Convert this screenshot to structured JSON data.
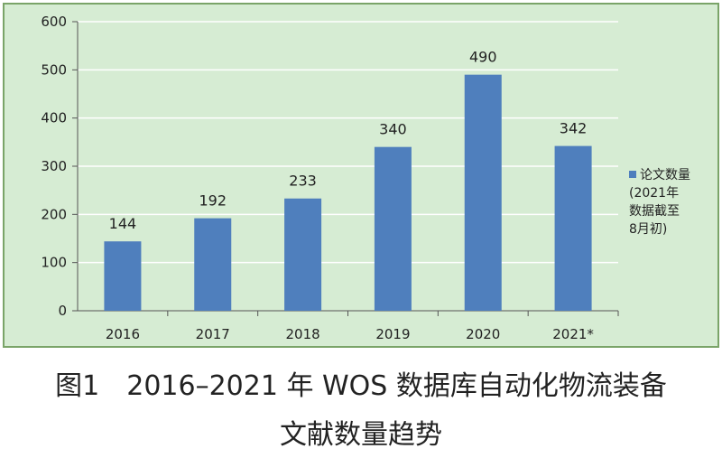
{
  "chart_data": {
    "type": "bar",
    "categories": [
      "2016",
      "2017",
      "2018",
      "2019",
      "2020",
      "2021*"
    ],
    "series": [
      {
        "name": "论文数量",
        "values": [
          144,
          192,
          233,
          340,
          490,
          342
        ]
      }
    ],
    "data_labels": [
      "144",
      "192",
      "233",
      "340",
      "490",
      "342"
    ],
    "yticks": [
      "0",
      "100",
      "200",
      "300",
      "400",
      "500",
      "600"
    ],
    "ylim": [
      0,
      600
    ],
    "grid": true,
    "legend_position": "right",
    "legend_lines": [
      "论文数量",
      "(2021年",
      "数据截至",
      "8月初)"
    ],
    "colors": {
      "bar": "#4f7fbd",
      "plot_bg": "#d6ecd3",
      "border": "#7aa468",
      "grid": "#ffffff"
    }
  },
  "caption": {
    "line1": "图1　2016–2021 年 WOS 数据库自动化物流装备",
    "line2": "文献数量趋势"
  }
}
